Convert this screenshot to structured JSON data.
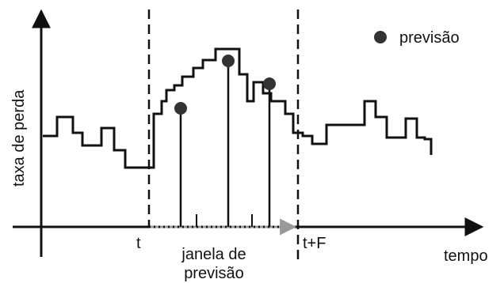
{
  "y_axis_label": "taxa de perda",
  "x_axis_label": "tempo",
  "marker_t": "t",
  "marker_tf": "t+F",
  "window_label": {
    "line1": "janela de",
    "line2": "previsão"
  },
  "legend": {
    "label": "previsão",
    "marker_color": "#333333"
  },
  "colors": {
    "line": "#111111",
    "window_arrow": "#999999"
  }
}
